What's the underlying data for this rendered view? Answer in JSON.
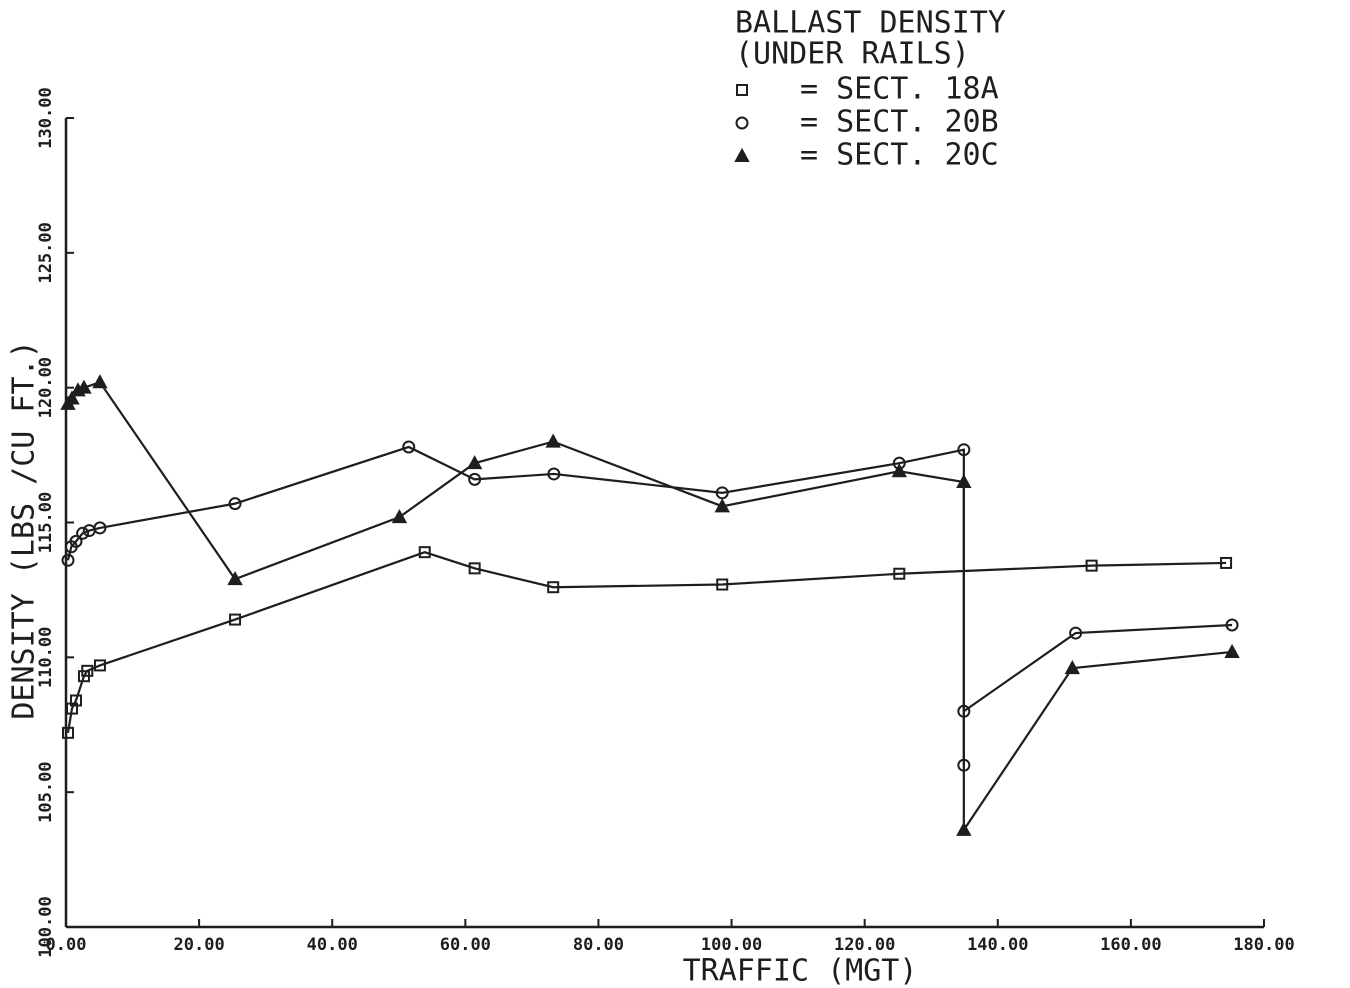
{
  "chart_data": {
    "type": "line",
    "title": "BALLAST DENSITY",
    "subtitle": "(UNDER RAILS)",
    "x_label": "TRAFFIC (MGT)",
    "y_label": "DENSITY (LBS /CU FT.)",
    "xlim": [
      0,
      180
    ],
    "ylim": [
      100,
      130
    ],
    "xticks": [
      {
        "value": 0,
        "label": "0.00"
      },
      {
        "value": 20,
        "label": "20.00"
      },
      {
        "value": 40,
        "label": "40.00"
      },
      {
        "value": 60,
        "label": "60.00"
      },
      {
        "value": 80,
        "label": "80.00"
      },
      {
        "value": 100,
        "label": "100.00"
      },
      {
        "value": 120,
        "label": "120.00"
      },
      {
        "value": 140,
        "label": "140.00"
      },
      {
        "value": 160,
        "label": "160.00"
      },
      {
        "value": 180,
        "label": "180.00"
      }
    ],
    "yticks": [
      {
        "value": 100,
        "label": "100.00"
      },
      {
        "value": 105,
        "label": "105.00"
      },
      {
        "value": 110,
        "label": "110.00"
      },
      {
        "value": 115,
        "label": "115.00"
      },
      {
        "value": 120,
        "label": "120.00"
      },
      {
        "value": 125,
        "label": "125.00"
      },
      {
        "value": 130,
        "label": "130.00"
      }
    ],
    "series": [
      {
        "name": "= SECT. 18A",
        "marker": "square",
        "color": "#1e1e1e",
        "x": [
          0.3,
          0.9,
          1.5,
          2.7,
          3.2,
          5.1,
          25.4,
          53.9,
          61.4,
          73.2,
          98.6,
          125.2,
          154.1,
          174.3
        ],
        "values": [
          107.2,
          108.1,
          108.4,
          109.3,
          109.5,
          109.7,
          111.4,
          113.9,
          113.3,
          112.6,
          112.7,
          113.1,
          113.4,
          113.5
        ]
      },
      {
        "name": "= SECT. 20B",
        "marker": "circle",
        "color": "#1e1e1e",
        "x": [
          0.3,
          0.8,
          1.5,
          2.5,
          3.5,
          5.1,
          25.4,
          51.5,
          61.4,
          73.3,
          98.6,
          125.2,
          134.9,
          134.9,
          134.9,
          151.7,
          175.2
        ],
        "values": [
          113.6,
          114.1,
          114.3,
          114.6,
          114.7,
          114.8,
          115.7,
          117.8,
          116.6,
          116.8,
          116.1,
          117.2,
          117.7,
          106.0,
          108.0,
          110.9,
          111.2
        ]
      },
      {
        "name": "= SECT. 20C",
        "marker": "triangle",
        "color": "#1e1e1e",
        "x": [
          0.3,
          0.9,
          1.8,
          2.7,
          5.1,
          25.4,
          50.1,
          61.4,
          73.2,
          98.6,
          125.2,
          134.9,
          134.9,
          151.2,
          175.2
        ],
        "values": [
          119.4,
          119.6,
          119.9,
          120.0,
          120.2,
          112.9,
          115.2,
          117.2,
          118.0,
          115.6,
          116.9,
          116.5,
          103.6,
          109.6,
          110.2
        ]
      }
    ]
  }
}
